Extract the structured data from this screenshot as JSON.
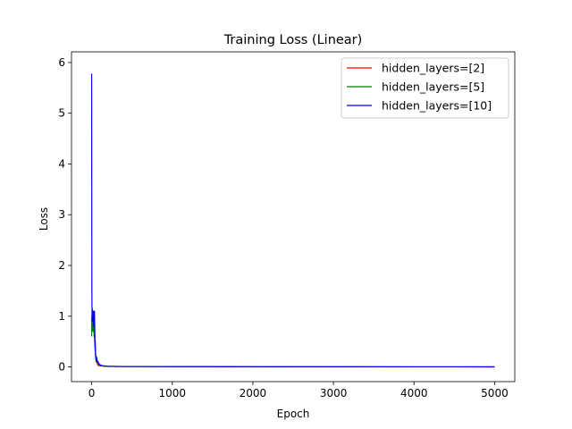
{
  "chart_data": {
    "type": "line",
    "title": "Training Loss (Linear)",
    "xlabel": "Epoch",
    "ylabel": "Loss",
    "xlim": [
      -250,
      5250
    ],
    "ylim": [
      -0.29,
      6.21
    ],
    "xticks": [
      0,
      1000,
      2000,
      3000,
      4000,
      5000
    ],
    "yticks": [
      0,
      1,
      2,
      3,
      4,
      5,
      6
    ],
    "grid": false,
    "legend": "top-right",
    "series": [
      {
        "name": "hidden_layers=[2]",
        "color": "#ff0000",
        "x": [
          0,
          2,
          5,
          8,
          12,
          16,
          20,
          25,
          30,
          35,
          40,
          50,
          60,
          70,
          80,
          100,
          150,
          200,
          300,
          500,
          1000,
          2000,
          3000,
          4000,
          5000
        ],
        "y": [
          0.9,
          1.0,
          0.95,
          1.02,
          0.9,
          0.95,
          0.85,
          0.9,
          0.75,
          0.6,
          0.4,
          0.2,
          0.12,
          0.06,
          0.03,
          0.02,
          0.015,
          0.012,
          0.01,
          0.008,
          0.006,
          0.004,
          0.003,
          0.002,
          0.001
        ]
      },
      {
        "name": "hidden_layers=[5]",
        "color": "#008000",
        "x": [
          0,
          2,
          4,
          6,
          8,
          10,
          12,
          15,
          18,
          20,
          25,
          30,
          35,
          40,
          45,
          50,
          60,
          70,
          80,
          100,
          150,
          200,
          300,
          500,
          1000,
          2000,
          3000,
          4000,
          5000
        ],
        "y": [
          0.6,
          0.95,
          0.7,
          1.0,
          0.75,
          0.95,
          0.8,
          0.95,
          0.7,
          0.9,
          0.85,
          0.6,
          0.75,
          0.45,
          0.5,
          0.2,
          0.1,
          0.12,
          0.05,
          0.03,
          0.015,
          0.01,
          0.008,
          0.006,
          0.005,
          0.003,
          0.002,
          0.002,
          0.001
        ]
      },
      {
        "name": "hidden_layers=[10]",
        "color": "#0000ff",
        "x": [
          0,
          1,
          2,
          3,
          4,
          5,
          6,
          8,
          10,
          12,
          15,
          18,
          20,
          22,
          25,
          28,
          30,
          35,
          40,
          45,
          50,
          55,
          60,
          70,
          80,
          90,
          100,
          120,
          150,
          200,
          300,
          500,
          1000,
          2000,
          3000,
          4000,
          5000
        ],
        "y": [
          5.78,
          4.2,
          2.5,
          1.5,
          1.2,
          1.1,
          0.9,
          1.15,
          0.95,
          1.1,
          0.9,
          1.05,
          0.95,
          1.1,
          0.8,
          1.05,
          0.9,
          1.1,
          0.65,
          0.3,
          0.25,
          0.1,
          0.2,
          0.12,
          0.1,
          0.06,
          0.05,
          0.03,
          0.02,
          0.015,
          0.01,
          0.008,
          0.006,
          0.004,
          0.003,
          0.002,
          0.002
        ]
      }
    ]
  }
}
